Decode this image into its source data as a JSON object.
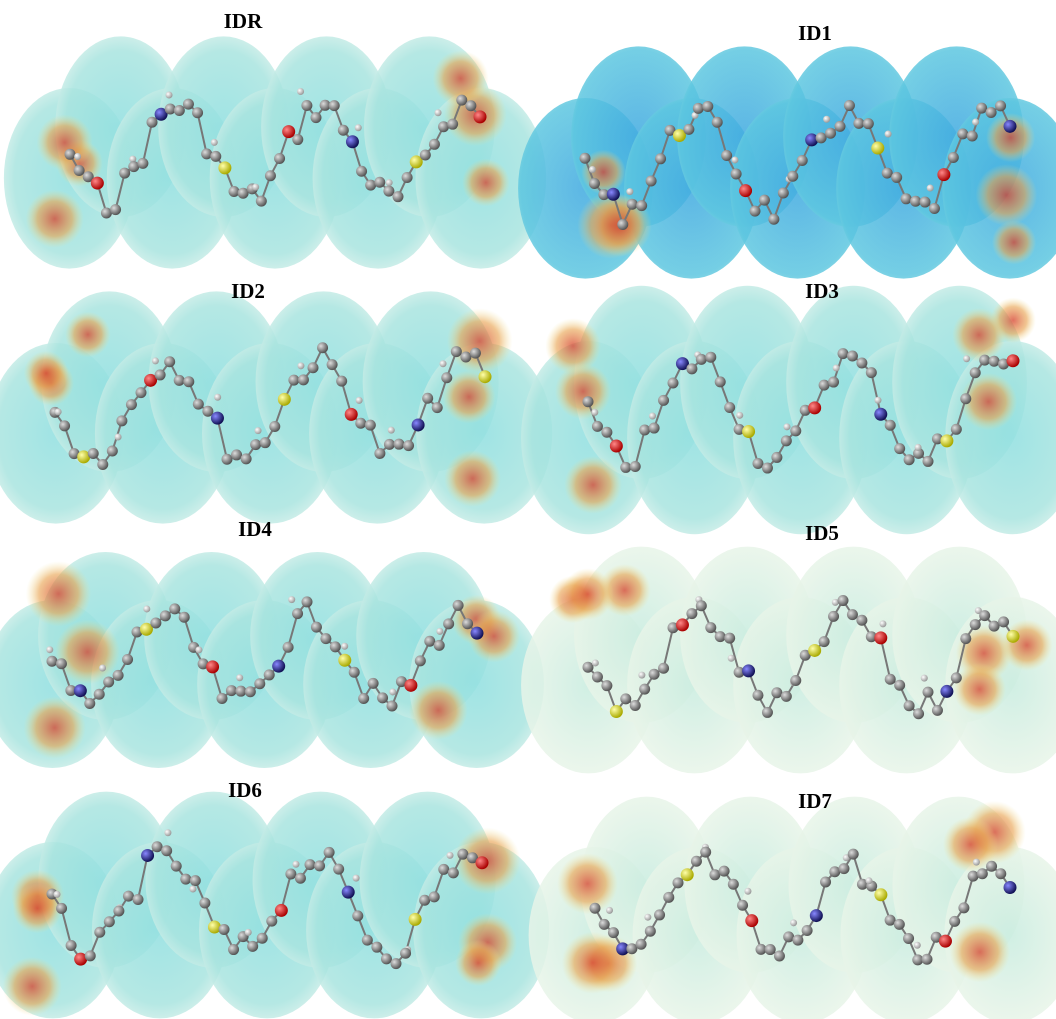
{
  "panels": [
    {
      "label": "IDR"
    },
    {
      "label": "ID1"
    },
    {
      "label": "ID2"
    },
    {
      "label": "ID3"
    },
    {
      "label": "ID4"
    },
    {
      "label": "ID5"
    },
    {
      "label": "ID6"
    },
    {
      "label": "ID7"
    }
  ]
}
